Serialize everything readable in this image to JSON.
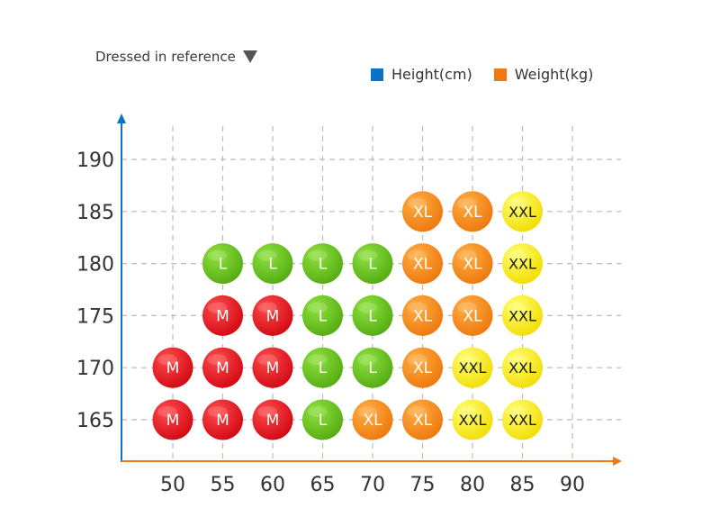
{
  "page": {
    "title": "Dressed in reference"
  },
  "legend": {
    "items": [
      {
        "label": "Height(cm)",
        "color": "#0b72c6"
      },
      {
        "label": "Weight(kg)",
        "color": "#ef7a12"
      }
    ]
  },
  "chart_data": {
    "type": "scatter",
    "title": "Dressed in reference",
    "xlabel": "",
    "ylabel": "",
    "x_ticks": [
      50,
      55,
      60,
      65,
      70,
      75,
      80,
      85,
      90
    ],
    "y_ticks": [
      165,
      170,
      175,
      180,
      185,
      190
    ],
    "xlim": [
      45,
      92
    ],
    "ylim": [
      160,
      195
    ],
    "grid": true,
    "legend_placement": "top-right",
    "colors": {
      "x_axis": "#ef7a12",
      "y_axis": "#0b72c6",
      "grid": "#bbbbbb",
      "size_colors": {
        "M": "#e3101b",
        "L": "#69bf1b",
        "XL": "#ef8716",
        "XXL": "#f6ea16"
      }
    },
    "points": [
      {
        "x": 75,
        "y": 185,
        "size": "XL"
      },
      {
        "x": 80,
        "y": 185,
        "size": "XL"
      },
      {
        "x": 85,
        "y": 185,
        "size": "XXL"
      },
      {
        "x": 55,
        "y": 180,
        "size": "L"
      },
      {
        "x": 60,
        "y": 180,
        "size": "L"
      },
      {
        "x": 65,
        "y": 180,
        "size": "L"
      },
      {
        "x": 70,
        "y": 180,
        "size": "L"
      },
      {
        "x": 75,
        "y": 180,
        "size": "XL"
      },
      {
        "x": 80,
        "y": 180,
        "size": "XL"
      },
      {
        "x": 85,
        "y": 180,
        "size": "XXL"
      },
      {
        "x": 55,
        "y": 175,
        "size": "M"
      },
      {
        "x": 60,
        "y": 175,
        "size": "M"
      },
      {
        "x": 65,
        "y": 175,
        "size": "L"
      },
      {
        "x": 70,
        "y": 175,
        "size": "L"
      },
      {
        "x": 75,
        "y": 175,
        "size": "XL"
      },
      {
        "x": 80,
        "y": 175,
        "size": "XL"
      },
      {
        "x": 85,
        "y": 175,
        "size": "XXL"
      },
      {
        "x": 50,
        "y": 170,
        "size": "M"
      },
      {
        "x": 55,
        "y": 170,
        "size": "M"
      },
      {
        "x": 60,
        "y": 170,
        "size": "M"
      },
      {
        "x": 65,
        "y": 170,
        "size": "L"
      },
      {
        "x": 70,
        "y": 170,
        "size": "L"
      },
      {
        "x": 75,
        "y": 170,
        "size": "XL"
      },
      {
        "x": 80,
        "y": 170,
        "size": "XXL"
      },
      {
        "x": 85,
        "y": 170,
        "size": "XXL"
      },
      {
        "x": 50,
        "y": 165,
        "size": "M"
      },
      {
        "x": 55,
        "y": 165,
        "size": "M"
      },
      {
        "x": 60,
        "y": 165,
        "size": "M"
      },
      {
        "x": 65,
        "y": 165,
        "size": "L"
      },
      {
        "x": 70,
        "y": 165,
        "size": "XL"
      },
      {
        "x": 75,
        "y": 165,
        "size": "XL"
      },
      {
        "x": 80,
        "y": 165,
        "size": "XXL"
      },
      {
        "x": 85,
        "y": 165,
        "size": "XXL"
      }
    ]
  }
}
